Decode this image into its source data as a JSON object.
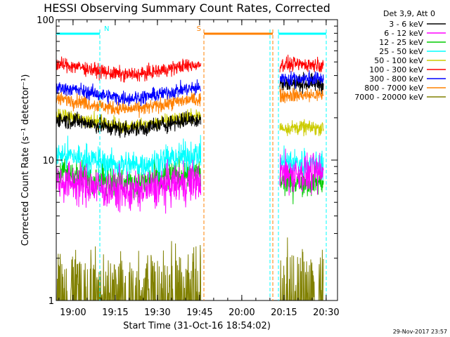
{
  "chart_data": {
    "type": "line",
    "title": "HESSI Observing Summary Count Rates, Corrected",
    "xlabel": "Start Time (31-Oct-16 18:54:02)",
    "ylabel": "Corrected Count Rate (s⁻¹ detector⁻¹)",
    "x_unit": "minutes after 18:54:02 UTC",
    "xlim": [
      0,
      100
    ],
    "ylim": [
      1,
      100
    ],
    "y_scale": "log",
    "xticks": [
      {
        "value": 5.97,
        "label": "19:00"
      },
      {
        "value": 20.97,
        "label": "19:15"
      },
      {
        "value": 35.97,
        "label": "19:30"
      },
      {
        "value": 50.97,
        "label": "19:45"
      },
      {
        "value": 65.97,
        "label": "20:00"
      },
      {
        "value": 80.97,
        "label": "20:15"
      },
      {
        "value": 95.97,
        "label": "20:30"
      }
    ],
    "yticks": [
      {
        "value": 1,
        "label": "1"
      },
      {
        "value": 10,
        "label": "10"
      },
      {
        "value": 100,
        "label": "100"
      }
    ],
    "legend_header": "Det 3,9, Att 0",
    "legend_position": "right",
    "timestamp": "29-Nov-2017 23:57",
    "series": [
      {
        "name": "3 - 6 keV",
        "color": "#000000",
        "level_a": 18,
        "level_b": 35,
        "noise": 0.06
      },
      {
        "name": "6 - 12 keV",
        "color": "#ff00ff",
        "level_a": 6.5,
        "level_b": 8,
        "noise": 0.14
      },
      {
        "name": "12 - 25 keV",
        "color": "#00cc00",
        "level_a": 7.5,
        "level_b": 7,
        "noise": 0.1
      },
      {
        "name": "25 - 50 keV",
        "color": "#00ffff",
        "level_a": 10,
        "level_b": 9.5,
        "noise": 0.1
      },
      {
        "name": "50 - 100 keV",
        "color": "#cccc00",
        "level_a": 19,
        "level_b": 17,
        "noise": 0.05
      },
      {
        "name": "100 - 300 keV",
        "color": "#ff0000",
        "level_a": 44,
        "level_b": 48,
        "noise": 0.05
      },
      {
        "name": "300 - 800 keV",
        "color": "#0000ff",
        "level_a": 30,
        "level_b": 38,
        "noise": 0.05
      },
      {
        "name": "800 - 7000 keV",
        "color": "#ff8000",
        "level_a": 25,
        "level_b": 29,
        "noise": 0.05
      },
      {
        "name": "7000 - 20000 keV",
        "color": "#808000",
        "level_a": 1.5,
        "level_b": 1.5,
        "noise": 0.2
      }
    ],
    "data_intervals": [
      {
        "start": 0,
        "end": 51.5
      },
      {
        "start": 79.5,
        "end": 95
      }
    ],
    "markers": [
      {
        "label": "N",
        "color": "#00ffff",
        "bar": [
          0,
          15.5
        ],
        "lines": [
          15.5
        ]
      },
      {
        "label": "S",
        "color": "#ff8000",
        "bar": [
          52.5,
          77
        ],
        "lines": [
          52.5,
          77
        ]
      },
      {
        "label": "",
        "color": "#00ffff",
        "bar": [
          79,
          96
        ],
        "lines": [
          76,
          79,
          96
        ]
      }
    ]
  }
}
